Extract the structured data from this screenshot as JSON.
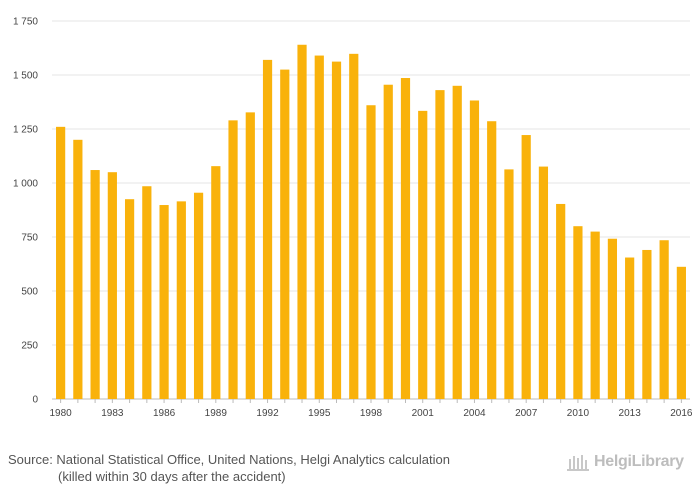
{
  "chart_data": {
    "type": "bar",
    "categories": [
      "1980",
      "1981",
      "1982",
      "1983",
      "1984",
      "1985",
      "1986",
      "1987",
      "1988",
      "1989",
      "1990",
      "1991",
      "1992",
      "1993",
      "1994",
      "1995",
      "1996",
      "1997",
      "1998",
      "1999",
      "2000",
      "2001",
      "2002",
      "2003",
      "2004",
      "2005",
      "2006",
      "2007",
      "2008",
      "2009",
      "2010",
      "2011",
      "2012",
      "2013",
      "2014",
      "2015",
      "2016"
    ],
    "x_tick_labels": [
      "1980",
      "1983",
      "1986",
      "1989",
      "1992",
      "1995",
      "1998",
      "2001",
      "2004",
      "2007",
      "2010",
      "2013",
      "2016"
    ],
    "values": [
      1260,
      1200,
      1060,
      1050,
      925,
      985,
      898,
      915,
      955,
      1078,
      1290,
      1327,
      1570,
      1525,
      1640,
      1590,
      1562,
      1598,
      1360,
      1455,
      1486,
      1334,
      1430,
      1450,
      1382,
      1286,
      1063,
      1222,
      1076,
      903,
      800,
      775,
      742,
      655,
      690,
      735,
      612
    ],
    "ylim": [
      0,
      1750
    ],
    "yticks": [
      0,
      250,
      500,
      750,
      1000,
      1250,
      1500,
      1750
    ],
    "ytick_labels": [
      "0",
      "250",
      "500",
      "750",
      "1 000",
      "1 250",
      "1 500",
      "1 750"
    ],
    "grid": true,
    "bar_color": "#F9B20B",
    "title": "",
    "xlabel": "",
    "ylabel": ""
  },
  "footer": {
    "source_line1": "Source: National Statistical Office, United Nations, Helgi Analytics calculation",
    "source_line2": "(killed within 30 days after the accident)",
    "logo_text": "HelgiLibrary"
  }
}
